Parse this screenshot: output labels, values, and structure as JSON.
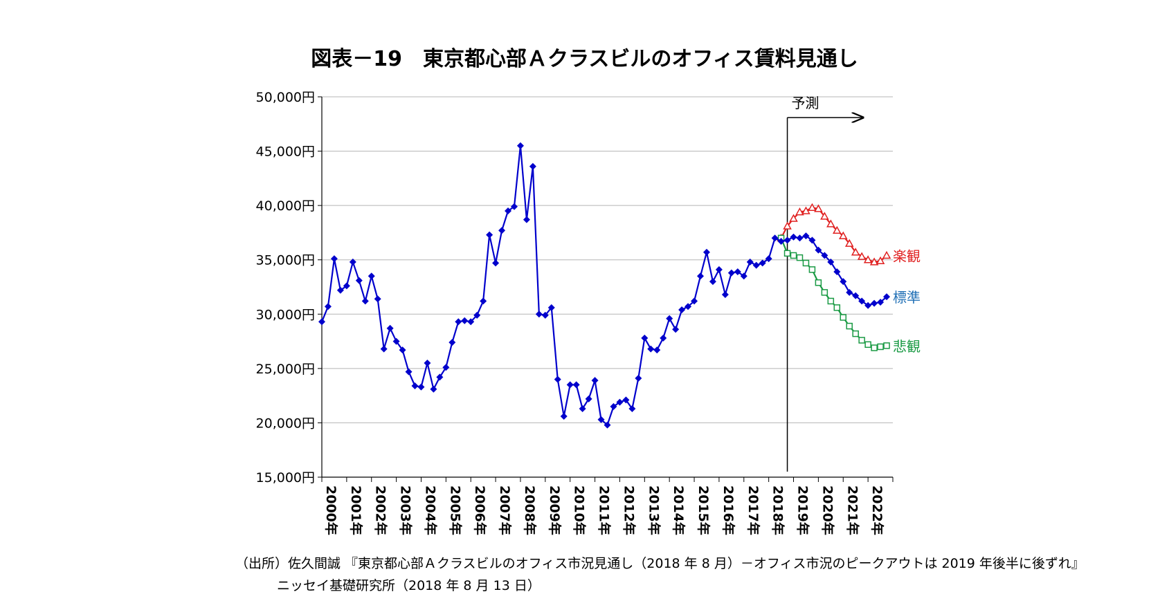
{
  "chart_data": {
    "type": "line",
    "title": "図表－19　東京都心部Ａクラスビルのオフィス賃料見通し",
    "y_tick_labels": [
      "15,000円",
      "20,000円",
      "25,000円",
      "30,000円",
      "35,000円",
      "40,000円",
      "45,000円",
      "50,000円"
    ],
    "y_ticks": [
      15000,
      20000,
      25000,
      30000,
      35000,
      40000,
      45000,
      50000
    ],
    "ylim": [
      15000,
      50000
    ],
    "x_tick_labels": [
      "2000年",
      "2001年",
      "2002年",
      "2003年",
      "2004年",
      "2005年",
      "2006年",
      "2007年",
      "2008年",
      "2009年",
      "2010年",
      "2011年",
      "2012年",
      "2013年",
      "2014年",
      "2015年",
      "2016年",
      "2017年",
      "2018年",
      "2019年",
      "2020年",
      "2021年",
      "2022年"
    ],
    "xlim": [
      2000,
      2023
    ],
    "grid": "horizontal",
    "forecast_label": "予測",
    "forecast_x": 2018.75,
    "series": [
      {
        "name": "標準",
        "color": "#0000cc",
        "label_color": "#1f6fb5",
        "marker": "diamond",
        "x": [
          2000.0,
          2000.25,
          2000.5,
          2000.75,
          2001.0,
          2001.25,
          2001.5,
          2001.75,
          2002.0,
          2002.25,
          2002.5,
          2002.75,
          2003.0,
          2003.25,
          2003.5,
          2003.75,
          2004.0,
          2004.25,
          2004.5,
          2004.75,
          2005.0,
          2005.25,
          2005.5,
          2005.75,
          2006.0,
          2006.25,
          2006.5,
          2006.75,
          2007.0,
          2007.25,
          2007.5,
          2007.75,
          2008.0,
          2008.25,
          2008.5,
          2008.75,
          2009.0,
          2009.25,
          2009.5,
          2009.75,
          2010.0,
          2010.25,
          2010.5,
          2010.75,
          2011.0,
          2011.25,
          2011.5,
          2011.75,
          2012.0,
          2012.25,
          2012.5,
          2012.75,
          2013.0,
          2013.25,
          2013.5,
          2013.75,
          2014.0,
          2014.25,
          2014.5,
          2014.75,
          2015.0,
          2015.25,
          2015.5,
          2015.75,
          2016.0,
          2016.25,
          2016.5,
          2016.75,
          2017.0,
          2017.25,
          2017.5,
          2017.75,
          2018.0,
          2018.25,
          2018.5,
          2018.75,
          2019.0,
          2019.25,
          2019.5,
          2019.75,
          2020.0,
          2020.25,
          2020.5,
          2020.75,
          2021.0,
          2021.25,
          2021.5,
          2021.75,
          2022.0,
          2022.25,
          2022.5,
          2022.75
        ],
        "values": [
          29300,
          30700,
          35100,
          32200,
          32600,
          34800,
          33100,
          31200,
          33500,
          31400,
          26800,
          28700,
          27500,
          26700,
          24700,
          23400,
          23300,
          25500,
          23100,
          24200,
          25100,
          27400,
          29300,
          29400,
          29300,
          29900,
          31200,
          37300,
          34700,
          37700,
          39500,
          39900,
          45500,
          38700,
          43600,
          30000,
          29900,
          30600,
          24000,
          20600,
          23500,
          23500,
          21300,
          22200,
          23900,
          20300,
          19800,
          21500,
          21900,
          22100,
          21300,
          24100,
          27800,
          26800,
          26700,
          27800,
          29600,
          28600,
          30400,
          30700,
          31200,
          33500,
          35700,
          33000,
          34100,
          31800,
          33800,
          33900,
          33500,
          34800,
          34500,
          34700,
          35100,
          37000,
          36700,
          36800,
          37100,
          37000,
          37200,
          36800,
          35900,
          35400,
          34800,
          33900,
          33000,
          32000,
          31700,
          31200,
          30800,
          31000,
          31100,
          31600
        ]
      },
      {
        "name": "楽観",
        "color": "#e02020",
        "label_color": "#e02020",
        "marker": "triangle",
        "x": [
          2018.5,
          2018.75,
          2019.0,
          2019.25,
          2019.5,
          2019.75,
          2020.0,
          2020.25,
          2020.5,
          2020.75,
          2021.0,
          2021.25,
          2021.5,
          2021.75,
          2022.0,
          2022.25,
          2022.5,
          2022.75
        ],
        "values": [
          37000,
          38100,
          38800,
          39400,
          39500,
          39800,
          39700,
          39000,
          38300,
          37700,
          37200,
          36500,
          35700,
          35300,
          35000,
          34800,
          34900,
          35400
        ]
      },
      {
        "name": "悲観",
        "color": "#1a9a44",
        "label_color": "#1a9a44",
        "marker": "square",
        "x": [
          2018.5,
          2018.75,
          2019.0,
          2019.25,
          2019.5,
          2019.75,
          2020.0,
          2020.25,
          2020.5,
          2020.75,
          2021.0,
          2021.25,
          2021.5,
          2021.75,
          2022.0,
          2022.25,
          2022.5,
          2022.75
        ],
        "values": [
          37000,
          35600,
          35400,
          35200,
          34700,
          34100,
          32900,
          32000,
          31200,
          30600,
          29700,
          28900,
          28200,
          27600,
          27200,
          26900,
          27000,
          27100
        ]
      }
    ]
  },
  "source": {
    "line1": "（出所）佐久間誠 『東京都心部Ａクラスビルのオフィス市況見通し（2018 年 8 月）－オフィス市況のピークアウトは 2019 年後半に後ずれ』",
    "line2": "ニッセイ基礎研究所（2018 年 8 月 13 日）"
  }
}
